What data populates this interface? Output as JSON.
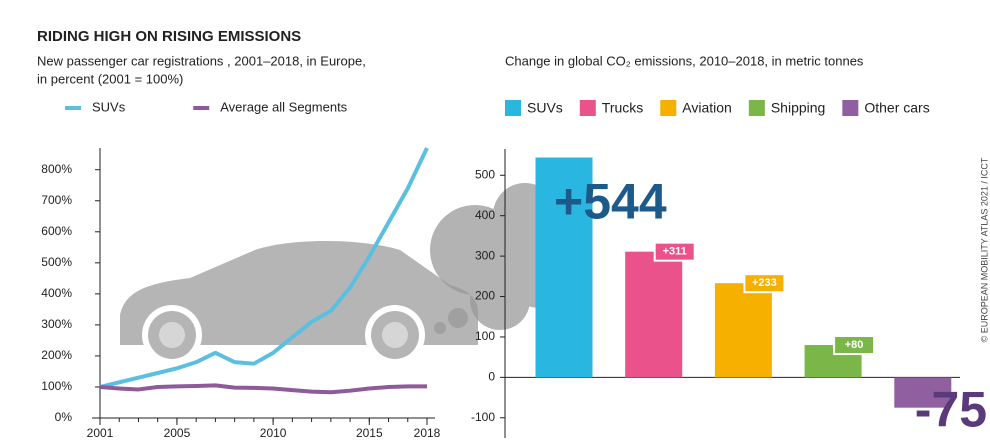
{
  "title": "RIDING HIGH ON RISING EMISSIONS",
  "credit": "© EUROPEAN MOBILITY ATLAS 2021 / ICCT",
  "chart_data": [
    {
      "type": "line",
      "subtitle": [
        "New passenger car registrations , 2001–2018, in Europe,",
        "in percent (2001 = 100%)"
      ],
      "x": [
        2001,
        2002,
        2003,
        2004,
        2005,
        2006,
        2007,
        2008,
        2009,
        2010,
        2011,
        2012,
        2013,
        2014,
        2015,
        2016,
        2017,
        2018
      ],
      "series": [
        {
          "name": "SUVs",
          "color": "#5bbfe0",
          "values": [
            100,
            115,
            130,
            145,
            160,
            180,
            210,
            180,
            175,
            210,
            260,
            310,
            345,
            420,
            520,
            630,
            740,
            870
          ]
        },
        {
          "name": "Average all Segments",
          "color": "#8f5a9a",
          "values": [
            100,
            95,
            92,
            100,
            102,
            103,
            105,
            98,
            97,
            95,
            90,
            85,
            83,
            88,
            95,
            100,
            102,
            102
          ]
        }
      ],
      "xlim": [
        2001,
        2018
      ],
      "xticks": [
        2001,
        2005,
        2010,
        2015,
        2018
      ],
      "ylim": [
        0,
        870
      ],
      "yticks": [
        {
          "value": 0,
          "label": "0%"
        },
        {
          "value": 100,
          "label": "100%"
        },
        {
          "value": 200,
          "label": "200%"
        },
        {
          "value": 300,
          "label": "300%"
        },
        {
          "value": 400,
          "label": "400%"
        },
        {
          "value": 500,
          "label": "500%"
        },
        {
          "value": 600,
          "label": "600%"
        },
        {
          "value": 700,
          "label": "700%"
        },
        {
          "value": 800,
          "label": "800%"
        }
      ]
    },
    {
      "type": "bar",
      "subtitle": "Change in global CO₂ emissions, 2010–2018, in metric tonnes",
      "categories": [
        "SUVs",
        "Trucks",
        "Aviation",
        "Shipping",
        "Other cars"
      ],
      "colors": [
        "#29b6e0",
        "#e9528a",
        "#f5b000",
        "#7ab648",
        "#8f5fa0"
      ],
      "values": [
        544,
        311,
        233,
        80,
        -75
      ],
      "value_labels": [
        "+544",
        "+311",
        "+233",
        "+80",
        "-75"
      ],
      "ylim": [
        -150,
        565
      ],
      "yticks": [
        -100,
        0,
        100,
        200,
        300,
        400,
        500
      ]
    }
  ]
}
